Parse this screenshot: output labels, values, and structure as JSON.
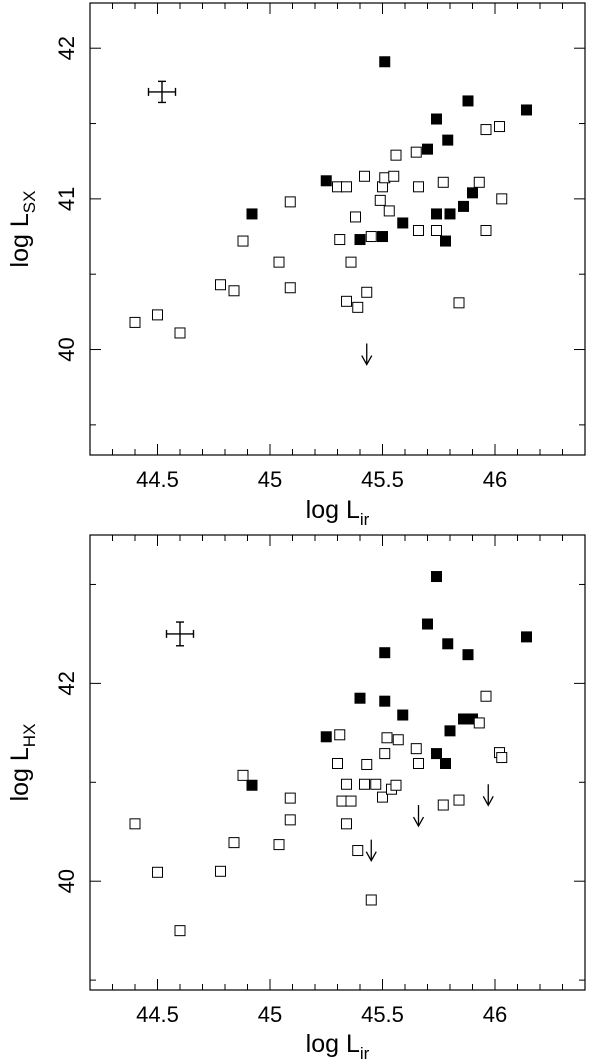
{
  "chart_data": [
    {
      "type": "scatter",
      "xlabel": "log L",
      "xlabel_sub": "ir",
      "ylabel": "log L",
      "ylabel_sub": "SX",
      "xlim": [
        44.2,
        46.4
      ],
      "ylim": [
        39.3,
        42.3
      ],
      "x_ticks": [
        "44.5",
        "45",
        "45.5",
        "46"
      ],
      "y_ticks": [
        "40",
        "41",
        "42"
      ],
      "series": [
        {
          "marker": "filled-square",
          "points": [
            [
              44.92,
              40.9
            ],
            [
              45.25,
              41.12
            ],
            [
              45.4,
              40.73
            ],
            [
              45.5,
              40.75
            ],
            [
              45.51,
              41.91
            ],
            [
              45.59,
              40.84
            ],
            [
              45.7,
              41.33
            ],
            [
              45.74,
              41.53
            ],
            [
              45.74,
              40.9
            ],
            [
              45.78,
              40.72
            ],
            [
              45.79,
              41.39
            ],
            [
              45.8,
              40.9
            ],
            [
              45.86,
              40.95
            ],
            [
              45.88,
              41.65
            ],
            [
              45.9,
              41.04
            ],
            [
              46.14,
              41.59
            ]
          ]
        },
        {
          "marker": "open-square",
          "points": [
            [
              44.4,
              40.18
            ],
            [
              44.5,
              40.23
            ],
            [
              44.6,
              40.11
            ],
            [
              44.78,
              40.43
            ],
            [
              44.84,
              40.39
            ],
            [
              44.88,
              40.72
            ],
            [
              45.04,
              40.58
            ],
            [
              45.09,
              40.98
            ],
            [
              45.09,
              40.41
            ],
            [
              45.3,
              41.08
            ],
            [
              45.31,
              40.73
            ],
            [
              45.34,
              41.08
            ],
            [
              45.34,
              40.32
            ],
            [
              45.36,
              40.58
            ],
            [
              45.38,
              40.88
            ],
            [
              45.39,
              40.28
            ],
            [
              45.42,
              41.15
            ],
            [
              45.43,
              40.38
            ],
            [
              45.45,
              40.75
            ],
            [
              45.49,
              40.99
            ],
            [
              45.5,
              41.08
            ],
            [
              45.51,
              41.14
            ],
            [
              45.53,
              40.92
            ],
            [
              45.55,
              41.15
            ],
            [
              45.56,
              41.29
            ],
            [
              45.65,
              41.31
            ],
            [
              45.66,
              41.08
            ],
            [
              45.66,
              40.79
            ],
            [
              45.74,
              40.79
            ],
            [
              45.77,
              41.11
            ],
            [
              45.84,
              40.31
            ],
            [
              45.93,
              41.11
            ],
            [
              45.96,
              41.46
            ],
            [
              45.96,
              40.79
            ],
            [
              46.02,
              41.48
            ],
            [
              46.03,
              41.0
            ]
          ]
        }
      ],
      "upper_limits": [
        [
          45.43,
          40.04
        ]
      ],
      "error_bar_sample": {
        "x": 44.52,
        "y": 41.71,
        "xerr": 0.06,
        "yerr": 0.07
      }
    },
    {
      "type": "scatter",
      "xlabel": "log L",
      "xlabel_sub": "ir",
      "ylabel": "log L",
      "ylabel_sub": "HX",
      "xlim": [
        44.2,
        46.4
      ],
      "ylim": [
        38.9,
        43.5
      ],
      "x_ticks": [
        "44.5",
        "45",
        "45.5",
        "46"
      ],
      "y_ticks": [
        "40",
        "42"
      ],
      "series": [
        {
          "marker": "filled-square",
          "points": [
            [
              44.92,
              40.97
            ],
            [
              45.25,
              41.46
            ],
            [
              45.4,
              41.85
            ],
            [
              45.51,
              42.31
            ],
            [
              45.51,
              41.82
            ],
            [
              45.59,
              41.68
            ],
            [
              45.7,
              42.6
            ],
            [
              45.74,
              43.08
            ],
            [
              45.74,
              41.29
            ],
            [
              45.78,
              41.19
            ],
            [
              45.79,
              42.4
            ],
            [
              45.8,
              41.52
            ],
            [
              45.86,
              41.64
            ],
            [
              45.88,
              42.29
            ],
            [
              45.9,
              41.64
            ],
            [
              46.14,
              42.47
            ]
          ]
        },
        {
          "marker": "open-square",
          "points": [
            [
              44.4,
              40.58
            ],
            [
              44.5,
              40.09
            ],
            [
              44.6,
              39.5
            ],
            [
              44.78,
              40.1
            ],
            [
              44.84,
              40.39
            ],
            [
              44.88,
              41.07
            ],
            [
              45.04,
              40.37
            ],
            [
              45.09,
              40.84
            ],
            [
              45.09,
              40.62
            ],
            [
              45.3,
              41.19
            ],
            [
              45.31,
              41.48
            ],
            [
              45.32,
              40.81
            ],
            [
              45.34,
              40.98
            ],
            [
              45.34,
              40.58
            ],
            [
              45.36,
              40.81
            ],
            [
              45.39,
              40.31
            ],
            [
              45.42,
              40.98
            ],
            [
              45.43,
              41.18
            ],
            [
              45.45,
              39.81
            ],
            [
              45.47,
              40.98
            ],
            [
              45.5,
              40.85
            ],
            [
              45.51,
              41.29
            ],
            [
              45.52,
              41.45
            ],
            [
              45.54,
              40.93
            ],
            [
              45.56,
              40.97
            ],
            [
              45.57,
              41.43
            ],
            [
              45.65,
              41.34
            ],
            [
              45.66,
              41.19
            ],
            [
              45.77,
              40.77
            ],
            [
              45.84,
              40.82
            ],
            [
              45.93,
              41.6
            ],
            [
              45.96,
              41.87
            ],
            [
              46.02,
              41.3
            ],
            [
              46.03,
              41.25
            ]
          ]
        }
      ],
      "upper_limits": [
        [
          45.45,
          40.42
        ],
        [
          45.66,
          40.77
        ],
        [
          45.97,
          40.98
        ]
      ],
      "error_bar_sample": {
        "x": 44.6,
        "y": 42.5,
        "xerr": 0.06,
        "yerr": 0.12
      }
    }
  ]
}
